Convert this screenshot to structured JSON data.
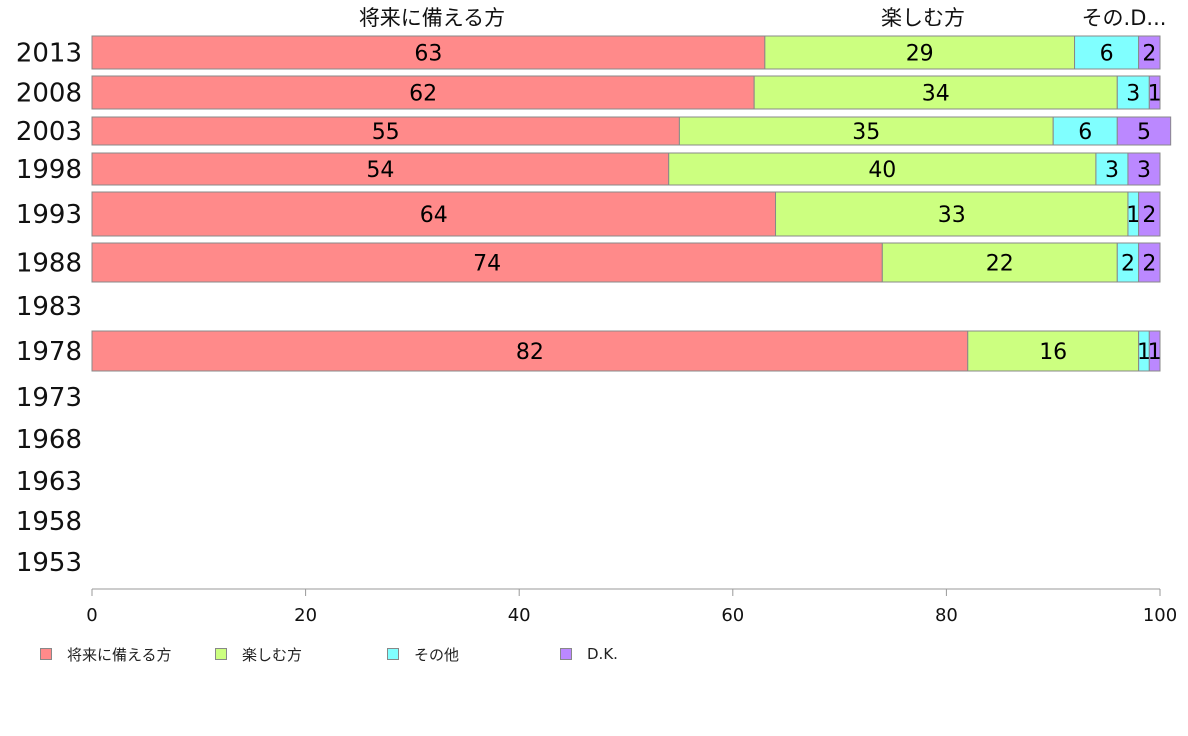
{
  "chart_data": {
    "type": "bar",
    "orientation": "horizontal",
    "stacked": true,
    "categories": [
      "2013",
      "2008",
      "2003",
      "1998",
      "1993",
      "1988",
      "1983",
      "1978",
      "1973",
      "1968",
      "1963",
      "1958",
      "1953"
    ],
    "series": [
      {
        "name": "将来に備える方",
        "color": "#ff8a8a",
        "values": [
          63,
          62,
          55,
          54,
          64,
          74,
          null,
          82,
          null,
          null,
          null,
          null,
          null
        ]
      },
      {
        "name": "楽しむ方",
        "color": "#ccff80",
        "values": [
          29,
          34,
          35,
          40,
          33,
          22,
          null,
          16,
          null,
          null,
          null,
          null,
          null
        ]
      },
      {
        "name": "その他",
        "color": "#80ffff",
        "values": [
          6,
          3,
          6,
          3,
          1,
          2,
          null,
          1,
          null,
          null,
          null,
          null,
          null
        ]
      },
      {
        "name": "D.K.",
        "color": "#bb88ff",
        "values": [
          2,
          1,
          5,
          3,
          2,
          2,
          null,
          1,
          null,
          null,
          null,
          null,
          null
        ]
      }
    ],
    "top_labels": [
      "将来に備える方",
      "楽しむ方",
      "その.D..."
    ],
    "xlim": [
      0,
      100
    ],
    "x_ticks": [
      "0",
      "20",
      "40",
      "60",
      "80",
      "100"
    ],
    "grid": false,
    "legend_position": "bottom-left"
  }
}
